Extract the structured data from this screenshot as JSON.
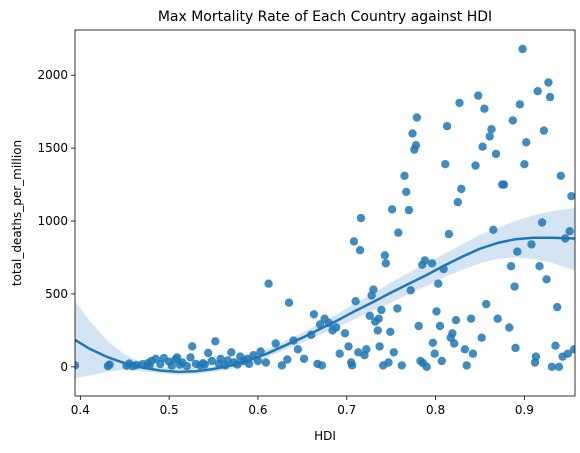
{
  "chart_data": {
    "type": "scatter",
    "title": "Max Mortality Rate of Each Country against HDI",
    "xlabel": "HDI",
    "ylabel": "total_deaths_per_million",
    "xlim": [
      0.394,
      0.957
    ],
    "ylim": [
      -200,
      2310
    ],
    "xticks": [
      0.4,
      0.5,
      0.6,
      0.7,
      0.8,
      0.9
    ],
    "xtick_labels": [
      "0.4",
      "0.5",
      "0.6",
      "0.7",
      "0.8",
      "0.9"
    ],
    "yticks": [
      0,
      500,
      1000,
      1500,
      2000
    ],
    "ytick_labels": [
      "0",
      "500",
      "1000",
      "1500",
      "2000"
    ],
    "grid": false,
    "legend": "none",
    "colors": {
      "points": "#1f77b4",
      "line": "#1f77b4",
      "band": "#c6dbef"
    },
    "points": [
      [
        0.394,
        10
      ],
      [
        0.431,
        5
      ],
      [
        0.433,
        15
      ],
      [
        0.452,
        8
      ],
      [
        0.455,
        22
      ],
      [
        0.459,
        5
      ],
      [
        0.463,
        12
      ],
      [
        0.47,
        18
      ],
      [
        0.476,
        25
      ],
      [
        0.478,
        10
      ],
      [
        0.48,
        40
      ],
      [
        0.485,
        55
      ],
      [
        0.49,
        20
      ],
      [
        0.494,
        60
      ],
      [
        0.5,
        35
      ],
      [
        0.503,
        8
      ],
      [
        0.507,
        50
      ],
      [
        0.509,
        65
      ],
      [
        0.512,
        15
      ],
      [
        0.515,
        30
      ],
      [
        0.52,
        5
      ],
      [
        0.524,
        65
      ],
      [
        0.526,
        140
      ],
      [
        0.53,
        20
      ],
      [
        0.535,
        10
      ],
      [
        0.538,
        25
      ],
      [
        0.54,
        15
      ],
      [
        0.544,
        95
      ],
      [
        0.548,
        40
      ],
      [
        0.552,
        175
      ],
      [
        0.556,
        20
      ],
      [
        0.558,
        55
      ],
      [
        0.563,
        10
      ],
      [
        0.566,
        45
      ],
      [
        0.57,
        100
      ],
      [
        0.573,
        30
      ],
      [
        0.577,
        15
      ],
      [
        0.58,
        70
      ],
      [
        0.584,
        40
      ],
      [
        0.588,
        55
      ],
      [
        0.59,
        20
      ],
      [
        0.595,
        80
      ],
      [
        0.6,
        40
      ],
      [
        0.603,
        105
      ],
      [
        0.609,
        30
      ],
      [
        0.612,
        570
      ],
      [
        0.62,
        160
      ],
      [
        0.627,
        10
      ],
      [
        0.633,
        50
      ],
      [
        0.635,
        440
      ],
      [
        0.64,
        180
      ],
      [
        0.645,
        120
      ],
      [
        0.652,
        55
      ],
      [
        0.66,
        220
      ],
      [
        0.663,
        360
      ],
      [
        0.667,
        20
      ],
      [
        0.67,
        290
      ],
      [
        0.672,
        10
      ],
      [
        0.675,
        330
      ],
      [
        0.68,
        300
      ],
      [
        0.684,
        250
      ],
      [
        0.688,
        270
      ],
      [
        0.692,
        90
      ],
      [
        0.698,
        230
      ],
      [
        0.702,
        140
      ],
      [
        0.705,
        30
      ],
      [
        0.706,
        10
      ],
      [
        0.708,
        860
      ],
      [
        0.71,
        450
      ],
      [
        0.713,
        100
      ],
      [
        0.715,
        800
      ],
      [
        0.716,
        1020
      ],
      [
        0.72,
        80
      ],
      [
        0.722,
        120
      ],
      [
        0.726,
        350
      ],
      [
        0.728,
        490
      ],
      [
        0.73,
        530
      ],
      [
        0.732,
        310
      ],
      [
        0.735,
        250
      ],
      [
        0.736,
        330
      ],
      [
        0.737,
        140
      ],
      [
        0.739,
        390
      ],
      [
        0.741,
        10
      ],
      [
        0.743,
        765
      ],
      [
        0.744,
        710
      ],
      [
        0.747,
        30
      ],
      [
        0.749,
        240
      ],
      [
        0.751,
        1080
      ],
      [
        0.753,
        100
      ],
      [
        0.757,
        400
      ],
      [
        0.758,
        920
      ],
      [
        0.762,
        10
      ],
      [
        0.765,
        1310
      ],
      [
        0.767,
        1200
      ],
      [
        0.77,
        1075
      ],
      [
        0.772,
        525
      ],
      [
        0.774,
        1600
      ],
      [
        0.776,
        1490
      ],
      [
        0.778,
        1520
      ],
      [
        0.779,
        1710
      ],
      [
        0.781,
        280
      ],
      [
        0.783,
        40
      ],
      [
        0.785,
        700
      ],
      [
        0.786,
        25
      ],
      [
        0.788,
        730
      ],
      [
        0.79,
        0
      ],
      [
        0.796,
        710
      ],
      [
        0.797,
        165
      ],
      [
        0.799,
        90
      ],
      [
        0.801,
        380
      ],
      [
        0.803,
        570
      ],
      [
        0.805,
        280
      ],
      [
        0.807,
        40
      ],
      [
        0.809,
        670
      ],
      [
        0.811,
        1390
      ],
      [
        0.813,
        1650
      ],
      [
        0.815,
        910
      ],
      [
        0.817,
        200
      ],
      [
        0.819,
        230
      ],
      [
        0.821,
        160
      ],
      [
        0.823,
        320
      ],
      [
        0.825,
        1130
      ],
      [
        0.827,
        1810
      ],
      [
        0.829,
        1220
      ],
      [
        0.833,
        120
      ],
      [
        0.835,
        10
      ],
      [
        0.84,
        330
      ],
      [
        0.842,
        90
      ],
      [
        0.845,
        1380
      ],
      [
        0.848,
        1860
      ],
      [
        0.852,
        200
      ],
      [
        0.853,
        1510
      ],
      [
        0.855,
        1770
      ],
      [
        0.857,
        430
      ],
      [
        0.861,
        1580
      ],
      [
        0.863,
        1630
      ],
      [
        0.865,
        940
      ],
      [
        0.868,
        1460
      ],
      [
        0.87,
        330
      ],
      [
        0.875,
        1250
      ],
      [
        0.877,
        1250
      ],
      [
        0.883,
        270
      ],
      [
        0.885,
        690
      ],
      [
        0.887,
        1690
      ],
      [
        0.889,
        550
      ],
      [
        0.89,
        130
      ],
      [
        0.892,
        790
      ],
      [
        0.895,
        1800
      ],
      [
        0.898,
        2180
      ],
      [
        0.9,
        1390
      ],
      [
        0.902,
        1540
      ],
      [
        0.908,
        840
      ],
      [
        0.912,
        30
      ],
      [
        0.913,
        70
      ],
      [
        0.915,
        1890
      ],
      [
        0.917,
        690
      ],
      [
        0.92,
        990
      ],
      [
        0.922,
        1620
      ],
      [
        0.925,
        600
      ],
      [
        0.927,
        1950
      ],
      [
        0.929,
        1850
      ],
      [
        0.931,
        0
      ],
      [
        0.935,
        145
      ],
      [
        0.937,
        410
      ],
      [
        0.939,
        0
      ],
      [
        0.941,
        1310
      ],
      [
        0.943,
        70
      ],
      [
        0.946,
        880
      ],
      [
        0.949,
        90
      ],
      [
        0.951,
        930
      ],
      [
        0.953,
        1170
      ],
      [
        0.956,
        120
      ]
    ],
    "trend": {
      "x": [
        0.394,
        0.41,
        0.43,
        0.45,
        0.47,
        0.49,
        0.51,
        0.53,
        0.55,
        0.57,
        0.59,
        0.61,
        0.63,
        0.65,
        0.67,
        0.69,
        0.71,
        0.73,
        0.75,
        0.77,
        0.79,
        0.81,
        0.83,
        0.85,
        0.87,
        0.89,
        0.91,
        0.93,
        0.957
      ],
      "y": [
        185,
        125,
        68,
        25,
        -5,
        -25,
        -35,
        -30,
        -15,
        10,
        45,
        90,
        145,
        200,
        260,
        320,
        385,
        445,
        510,
        570,
        630,
        695,
        755,
        810,
        850,
        875,
        885,
        885,
        880
      ],
      "lower": [
        -80,
        -60,
        -35,
        -20,
        -30,
        -45,
        -55,
        -50,
        -35,
        -15,
        20,
        65,
        115,
        165,
        220,
        275,
        330,
        385,
        440,
        500,
        555,
        615,
        665,
        710,
        740,
        750,
        740,
        715,
        660
      ],
      "upper": [
        450,
        320,
        180,
        85,
        25,
        0,
        -10,
        -5,
        5,
        35,
        75,
        120,
        175,
        235,
        300,
        365,
        440,
        505,
        580,
        645,
        710,
        775,
        840,
        905,
        955,
        1000,
        1040,
        1065,
        1090
      ]
    }
  }
}
